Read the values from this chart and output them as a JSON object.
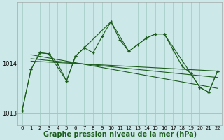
{
  "background_color": "#cde8e8",
  "plot_bg_color": "#cde8e8",
  "grid_color": "#a0c8c0",
  "line_color": "#1a5c1a",
  "xlabel": "Graphe pression niveau de la mer (hPa)",
  "xlabel_fontsize": 7,
  "xlim": [
    -0.5,
    22.5
  ],
  "ylim": [
    1012.75,
    1015.25
  ],
  "yticks": [
    1013,
    1014
  ],
  "xticks": [
    0,
    1,
    2,
    3,
    4,
    5,
    6,
    7,
    8,
    9,
    10,
    11,
    12,
    13,
    14,
    15,
    16,
    17,
    18,
    19,
    20,
    21,
    22
  ],
  "series1_x": [
    0,
    1,
    2,
    3,
    4,
    5,
    6,
    7,
    8,
    9,
    10,
    11,
    12,
    13,
    14,
    15,
    16,
    17,
    18,
    19,
    20,
    21,
    22
  ],
  "series1_y": [
    1013.05,
    1013.88,
    1014.22,
    1014.2,
    1014.0,
    1013.65,
    1014.15,
    1014.32,
    1014.22,
    1014.55,
    1014.85,
    1014.48,
    1014.25,
    1014.38,
    1014.52,
    1014.6,
    1014.6,
    1014.28,
    1013.95,
    1013.8,
    1013.52,
    1013.42,
    1013.85
  ],
  "series2_x": [
    0,
    1,
    2,
    3,
    5,
    6,
    7,
    10,
    12,
    14,
    15,
    16,
    19,
    20,
    21,
    22
  ],
  "series2_y": [
    1013.05,
    1013.88,
    1014.22,
    1014.2,
    1013.65,
    1014.15,
    1014.32,
    1014.85,
    1014.25,
    1014.52,
    1014.6,
    1014.6,
    1013.8,
    1013.52,
    1013.42,
    1013.85
  ],
  "tri_line1_x": [
    1,
    22
  ],
  "tri_line1_y": [
    1014.05,
    1013.85
  ],
  "tri_line2_x": [
    1,
    22
  ],
  "tri_line2_y": [
    1014.1,
    1013.72
  ],
  "tri_line3_x": [
    1,
    22
  ],
  "tri_line3_y": [
    1014.18,
    1013.5
  ]
}
